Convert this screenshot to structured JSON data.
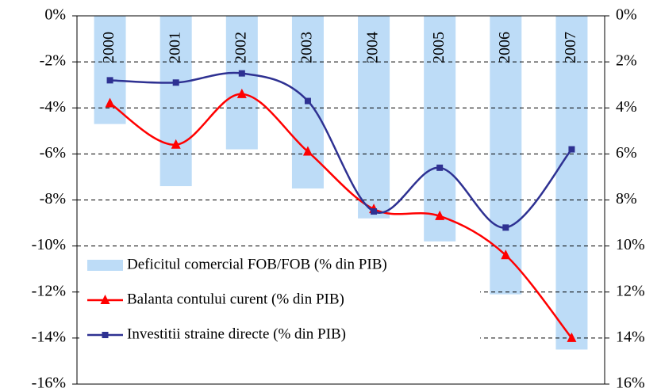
{
  "chart_data": {
    "type": "bar-line",
    "categories": [
      "2000",
      "2001",
      "2002",
      "2003",
      "2004",
      "2005",
      "2006",
      "2007"
    ],
    "series": [
      {
        "name": "Deficitul comercial FOB/FOB (% din PIB)",
        "type": "bar",
        "axis": "y2",
        "color": "#bddcf7",
        "values": [
          4.7,
          7.4,
          5.8,
          7.5,
          8.8,
          9.8,
          12.1,
          14.5
        ]
      },
      {
        "name": "Balanta contului curent (% din PIB)",
        "type": "line",
        "marker": "triangle",
        "color": "#ff0000",
        "values": [
          -3.8,
          -5.6,
          -3.4,
          -5.9,
          -8.4,
          -8.7,
          -10.4,
          -14.0
        ]
      },
      {
        "name": "Investitii straine directe (% din PIB)",
        "type": "line",
        "marker": "square",
        "color": "#2e3192",
        "values": [
          -2.8,
          -2.9,
          -2.5,
          -3.7,
          -8.5,
          -6.6,
          -9.2,
          -5.8
        ]
      }
    ],
    "ylim": [
      0,
      -16
    ],
    "yticks": [
      {
        "value": 0,
        "label": "0%"
      },
      {
        "value": -2,
        "label": "-2%"
      },
      {
        "value": -4,
        "label": "-4%"
      },
      {
        "value": -6,
        "label": "-6%"
      },
      {
        "value": -8,
        "label": "-8%"
      },
      {
        "value": -10,
        "label": "-10%"
      },
      {
        "value": -12,
        "label": "-12%"
      },
      {
        "value": -14,
        "label": "-14%"
      },
      {
        "value": -16,
        "label": "-16%"
      }
    ],
    "y2lim": [
      0,
      16
    ],
    "y2ticks": [
      {
        "value": 0,
        "label": "0%"
      },
      {
        "value": 2,
        "label": "2%"
      },
      {
        "value": 4,
        "label": "4%"
      },
      {
        "value": 6,
        "label": "6%"
      },
      {
        "value": 8,
        "label": "8%"
      },
      {
        "value": 10,
        "label": "10%"
      },
      {
        "value": 12,
        "label": "12%"
      },
      {
        "value": 14,
        "label": "14%"
      },
      {
        "value": 16,
        "label": "16%"
      }
    ],
    "grid": true,
    "smooth": true,
    "legend": "bottom-left"
  }
}
